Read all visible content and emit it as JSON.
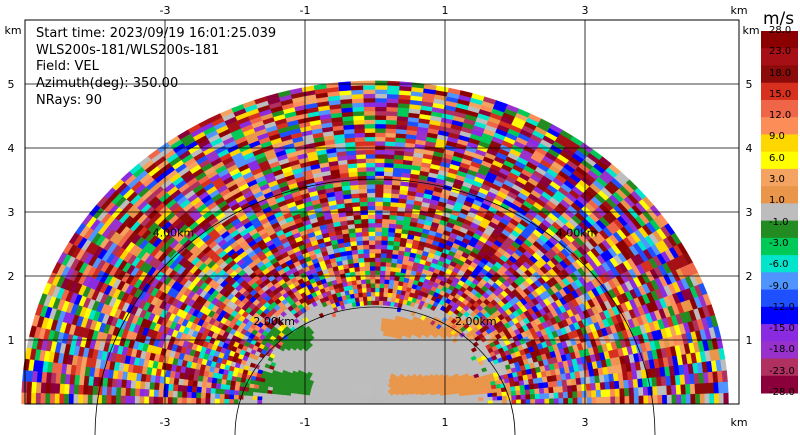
{
  "info": {
    "start_time": "Start time: 2023/09/19 16:01:25.039",
    "instrument": "WLS200s-181/WLS200s-181",
    "field": "Field: VEL",
    "azimuth": "Azimuth(deg): 350.00",
    "nrays": "NRays: 90"
  },
  "chart_data": {
    "type": "heatmap",
    "title": "",
    "xlabel": "km",
    "ylabel": "km",
    "xlim": [
      -5.6,
      5.6
    ],
    "ylim": [
      0,
      5.5
    ],
    "x_ticks": [
      -3,
      -1,
      1,
      3
    ],
    "y_ticks": [
      1,
      2,
      3,
      4,
      5
    ],
    "x_tick_labels": [
      "-3",
      "-1",
      "1",
      "3"
    ],
    "y_tick_labels": [
      "1",
      "2",
      "3",
      "4",
      "5"
    ],
    "unit_label": "km",
    "max_range_km": 5.05,
    "range_rings_km": [
      2.0,
      4.0
    ],
    "range_ring_labels": [
      "2.00km",
      "4.00km"
    ],
    "colorbar": {
      "unit": "m/s",
      "labels": [
        "28.0",
        "23.0",
        "18.0",
        "15.0",
        "12.0",
        "9.0",
        "6.0",
        "3.0",
        "1.0",
        "-1.0",
        "-3.0",
        "-6.0",
        "-9.0",
        "-12.0",
        "-15.0",
        "-18.0",
        "-23.0",
        "-28.0"
      ],
      "colors": [
        "#8b0000",
        "#a50f15",
        "#8b0a0a",
        "#d7301f",
        "#ef6548",
        "#fc8d59",
        "#ffd700",
        "#ffff00",
        "#f4a460",
        "#e9964a",
        "#bdbdbd",
        "#228b22",
        "#00c957",
        "#00e5cc",
        "#4f94ff",
        "#1e50ff",
        "#0000ff",
        "#8a2be2",
        "#9932cc",
        "#b03060",
        "#8b003a"
      ]
    },
    "dominant_values_near_range": {
      "left_sector": -2.0,
      "center": 0.0,
      "right_sector": 2.0
    }
  }
}
